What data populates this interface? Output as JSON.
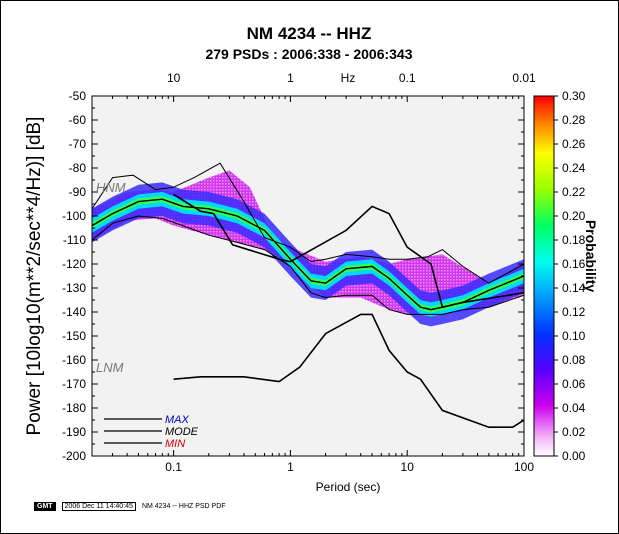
{
  "chart_data": {
    "type": "heatmap",
    "title": "NM 4234 -- HHZ",
    "subtitle": "279 PSDs : 2006:338 - 2006:343",
    "xlabel": "Period (sec)",
    "ylabel": "Power [10log10(m**2/sec**4/Hz)] [dB]",
    "x_scale": "log",
    "xlim": [
      0.02,
      100
    ],
    "ylim": [
      -200,
      -50
    ],
    "x_ticks": [
      0.1,
      1,
      10,
      100
    ],
    "x_tick_labels": [
      "0.1",
      "1",
      "10",
      "100"
    ],
    "y_ticks": [
      -200,
      -190,
      -180,
      -170,
      -160,
      -150,
      -140,
      -130,
      -120,
      -110,
      -100,
      -90,
      -80,
      -70,
      -60,
      -50
    ],
    "y_tick_labels": [
      "-200",
      "-190",
      "-180",
      "-170",
      "-160",
      "-150",
      "-140",
      "-130",
      "-120",
      "-110",
      "-100",
      "-90",
      "-80",
      "-70",
      "-60",
      "-50"
    ],
    "top_axis": {
      "label": "Hz",
      "ticks": [
        10,
        1,
        0.1,
        0.01
      ],
      "tick_labels": [
        "10",
        "1",
        "0.1",
        "0.01"
      ]
    },
    "colorbar": {
      "label": "Probability",
      "range": [
        0,
        0.3
      ],
      "ticks": [
        0.0,
        0.02,
        0.04,
        0.06,
        0.08,
        0.1,
        0.12,
        0.14,
        0.16,
        0.18,
        0.2,
        0.22,
        0.24,
        0.26,
        0.28,
        0.3
      ],
      "tick_labels": [
        "0.00",
        "0.02",
        "0.04",
        "0.06",
        "0.08",
        "0.10",
        "0.12",
        "0.14",
        "0.16",
        "0.18",
        "0.20",
        "0.22",
        "0.24",
        "0.26",
        "0.28",
        "0.30"
      ]
    },
    "series": [
      {
        "name": "MODE",
        "color": "#000000",
        "x": [
          0.02,
          0.03,
          0.05,
          0.08,
          0.12,
          0.2,
          0.35,
          0.6,
          1.0,
          1.5,
          2.0,
          3.0,
          5.0,
          7.0,
          10.0,
          13.0,
          16.0,
          20.0,
          30.0,
          50.0,
          100.0
        ],
        "y": [
          -104,
          -99,
          -94,
          -93,
          -96,
          -97,
          -100,
          -106,
          -118,
          -127,
          -128,
          -122,
          -121,
          -126,
          -133,
          -138,
          -139,
          -138,
          -136,
          -131,
          -125
        ]
      },
      {
        "name": "MAX",
        "color": "#000000",
        "x": [
          0.02,
          0.03,
          0.045,
          0.07,
          0.1,
          0.15,
          0.25,
          0.4,
          0.6,
          1.0,
          1.5,
          2.0,
          3.0,
          5.0,
          7.0,
          10.0,
          15.0,
          20.0,
          30.0,
          50.0,
          100.0
        ],
        "y": [
          -97,
          -84,
          -83,
          -89,
          -88,
          -84,
          -78,
          -94,
          -109,
          -113,
          -119,
          -118,
          -116,
          -117,
          -118,
          -118,
          -117,
          -114,
          -121,
          -128,
          -120
        ]
      },
      {
        "name": "MIN",
        "color": "#000000",
        "x": [
          0.02,
          0.03,
          0.05,
          0.08,
          0.12,
          0.2,
          0.35,
          0.6,
          1.0,
          1.5,
          2.0,
          3.0,
          5.0,
          7.0,
          10.0,
          15.0,
          20.0,
          30.0,
          50.0,
          100.0
        ],
        "y": [
          -110,
          -103,
          -100,
          -101,
          -104,
          -108,
          -111,
          -114,
          -121,
          -132,
          -134,
          -133,
          -133,
          -139,
          -141,
          -141,
          -141,
          -139,
          -138,
          -133
        ]
      }
    ],
    "reference_models": [
      {
        "name": "NHNM",
        "label": "HNM",
        "color": "#000000",
        "x": [
          0.1,
          0.17,
          0.22,
          0.32,
          0.8,
          1.0,
          3.0,
          5.0,
          7.0,
          10.0,
          16.0,
          20.0,
          30.0,
          100.0
        ],
        "y": [
          -91,
          -98,
          -99,
          -112,
          -118,
          -119,
          -106,
          -96,
          -99,
          -113,
          -120,
          -138,
          -136,
          -132
        ]
      },
      {
        "name": "NLNM",
        "label": "LNM",
        "color": "#000000",
        "x": [
          0.1,
          0.17,
          0.4,
          0.8,
          1.2,
          2.0,
          4.0,
          5.0,
          7.0,
          10.0,
          13.0,
          20.0,
          50.0,
          80.0,
          100.0
        ],
        "y": [
          -168,
          -167,
          -167,
          -169,
          -163,
          -149,
          -141,
          -141,
          -156,
          -165,
          -168,
          -181,
          -188,
          -188,
          -185
        ]
      }
    ],
    "pdf_band": {
      "center": {
        "x": [
          0.02,
          0.03,
          0.05,
          0.08,
          0.12,
          0.2,
          0.35,
          0.6,
          1.0,
          1.5,
          2.0,
          3.0,
          5.0,
          7.0,
          10.0,
          13.0,
          16.0,
          20.0,
          30.0,
          50.0,
          100.0
        ],
        "y": [
          -104,
          -99,
          -94,
          -93,
          -96,
          -97,
          -100,
          -106,
          -118,
          -127,
          -128,
          -122,
          -121,
          -126,
          -133,
          -138,
          -139,
          -138,
          -136,
          -131,
          -125
        ]
      },
      "core_halfwidth_db": 3,
      "mid_halfwidth_db": 7,
      "outer_upper": {
        "x": [
          0.02,
          0.04,
          0.07,
          0.1,
          0.2,
          0.3,
          0.45,
          0.7,
          1.0,
          2.0,
          4.0,
          7.0,
          10.0,
          20.0,
          50.0,
          100.0
        ],
        "y": [
          -97,
          -90,
          -89,
          -90,
          -84,
          -81,
          -88,
          -108,
          -113,
          -119,
          -117,
          -120,
          -118,
          -116,
          -128,
          -120
        ]
      },
      "outer_lower": {
        "x": [
          0.02,
          0.04,
          0.07,
          0.1,
          0.2,
          0.4,
          0.7,
          1.0,
          2.0,
          4.0,
          7.0,
          10.0,
          20.0,
          50.0,
          100.0
        ],
        "y": [
          -110,
          -102,
          -101,
          -104,
          -108,
          -112,
          -115,
          -121,
          -134,
          -134,
          -139,
          -141,
          -141,
          -138,
          -133
        ]
      }
    },
    "legend": {
      "placement": "bottom-left",
      "entries": [
        {
          "label": "MAX",
          "color": "#0000cc"
        },
        {
          "label": "MODE",
          "color": "#000000"
        },
        {
          "label": "MIN",
          "color": "#dd0000"
        }
      ]
    },
    "model_labels": {
      "high": "HNM",
      "low": "LNM"
    },
    "grid": false
  },
  "footer": {
    "logo": "GMT",
    "timestamp": "2006 Dec 11 14:40:45",
    "caption": "NM 4234 -- HHZ PSD PDF"
  }
}
